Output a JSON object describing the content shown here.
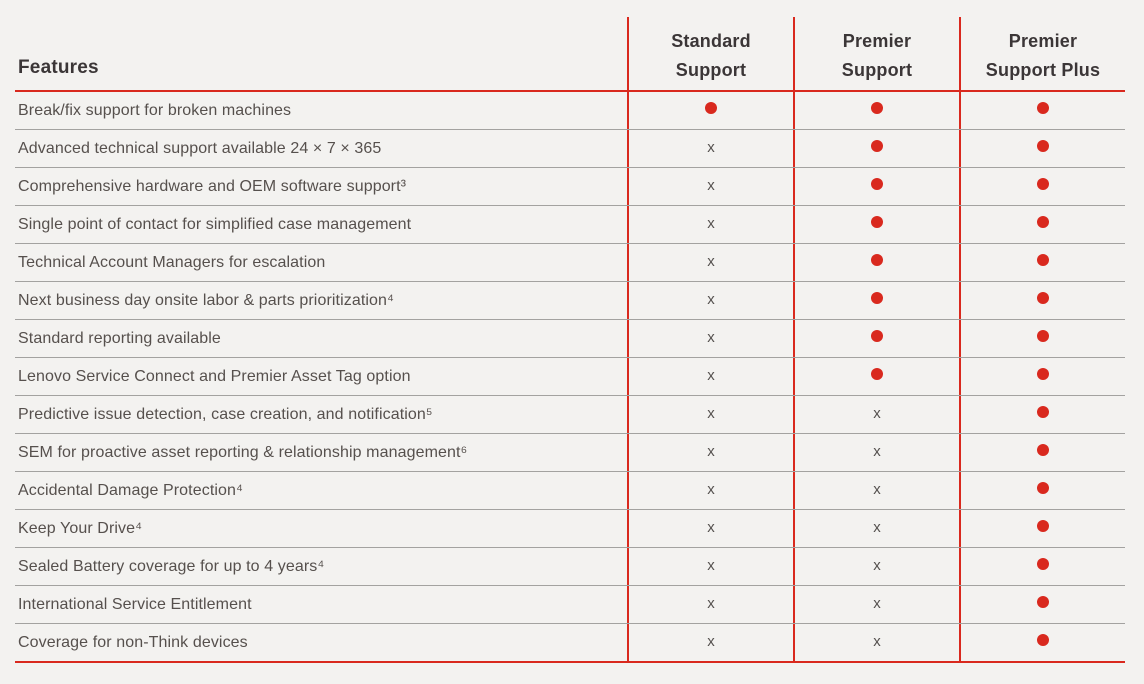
{
  "colors": {
    "accent_red": "#d9291e",
    "background": "#f3f2f0",
    "header_text": "#3b3637",
    "feature_text": "#56504d",
    "row_divider": "#a3a2a0",
    "x_mark": "#55514f"
  },
  "table": {
    "features_label": "Features",
    "not_included_glyph": "x",
    "included_icon": "red-dot-icon",
    "columns": [
      {
        "label": "Standard Support",
        "line1": "Standard",
        "line2": "Support"
      },
      {
        "label": "Premier Support",
        "line1": "Premier",
        "line2": "Support"
      },
      {
        "label": "Premier Support Plus",
        "line1": "Premier",
        "line2": "Support Plus"
      }
    ],
    "rows": [
      {
        "feature": "Break/fix support for broken machines",
        "values": [
          "included",
          "included",
          "included"
        ]
      },
      {
        "feature": "Advanced technical support available 24 × 7 × 365",
        "values": [
          "not_included",
          "included",
          "included"
        ]
      },
      {
        "feature": "Comprehensive hardware and OEM software support³",
        "values": [
          "not_included",
          "included",
          "included"
        ]
      },
      {
        "feature": "Single point of contact for simplified case management",
        "values": [
          "not_included",
          "included",
          "included"
        ]
      },
      {
        "feature": "Technical Account Managers for escalation",
        "values": [
          "not_included",
          "included",
          "included"
        ]
      },
      {
        "feature": "Next business day onsite labor & parts prioritization⁴",
        "values": [
          "not_included",
          "included",
          "included"
        ]
      },
      {
        "feature": "Standard reporting available",
        "values": [
          "not_included",
          "included",
          "included"
        ]
      },
      {
        "feature": "Lenovo Service Connect and Premier Asset Tag option",
        "values": [
          "not_included",
          "included",
          "included"
        ]
      },
      {
        "feature": "Predictive issue detection, case creation, and notification⁵",
        "values": [
          "not_included",
          "not_included",
          "included"
        ]
      },
      {
        "feature": "SEM for proactive asset reporting & relationship management⁶",
        "values": [
          "not_included",
          "not_included",
          "included"
        ]
      },
      {
        "feature": "Accidental Damage Protection⁴",
        "values": [
          "not_included",
          "not_included",
          "included"
        ]
      },
      {
        "feature": "Keep Your Drive⁴",
        "values": [
          "not_included",
          "not_included",
          "included"
        ]
      },
      {
        "feature": "Sealed Battery coverage for up to 4 years⁴",
        "values": [
          "not_included",
          "not_included",
          "included"
        ]
      },
      {
        "feature": "International Service Entitlement",
        "values": [
          "not_included",
          "not_included",
          "included"
        ]
      },
      {
        "feature": "Coverage for non-Think devices",
        "values": [
          "not_included",
          "not_included",
          "included"
        ]
      }
    ]
  }
}
